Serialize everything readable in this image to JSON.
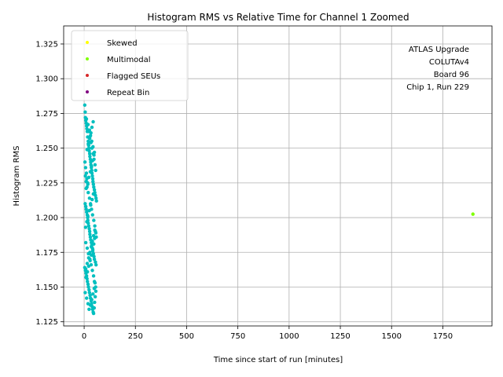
{
  "chart_data": {
    "type": "scatter",
    "title": "Histogram RMS vs Relative Time for Channel 1 Zoomed",
    "xlabel": "Time since start of run [minutes]",
    "ylabel": "Histogram RMS",
    "xlim": [
      -100,
      1990
    ],
    "ylim": [
      1.122,
      1.338
    ],
    "xticks": [
      0,
      250,
      500,
      750,
      1000,
      1250,
      1500,
      1750
    ],
    "yticks": [
      1.125,
      1.15,
      1.175,
      1.2,
      1.225,
      1.25,
      1.275,
      1.3,
      1.325
    ],
    "xtick_labels": [
      "0",
      "250",
      "500",
      "750",
      "1000",
      "1250",
      "1500",
      "1750"
    ],
    "ytick_labels": [
      "1.125",
      "1.150",
      "1.175",
      "1.200",
      "1.225",
      "1.250",
      "1.275",
      "1.300",
      "1.325"
    ],
    "grid": true,
    "legend_position": "top-left",
    "annotation": [
      "ATLAS Upgrade",
      "COLUTAv4",
      "Board 96",
      "Chip 1, Run 229"
    ],
    "colors": {
      "normal": "#00bfbf",
      "Skewed": "#ffff00",
      "Multimodal": "#7fff00",
      "Flagged SEUs": "#d62728",
      "Repeat Bin": "#800080"
    },
    "series": [
      {
        "name": "Skewed",
        "x": [],
        "y": []
      },
      {
        "name": "Multimodal",
        "x": [
          1897
        ],
        "y": [
          1.2025
        ]
      },
      {
        "name": "Flagged SEUs",
        "x": [],
        "y": []
      },
      {
        "name": "Repeat Bin",
        "x": [],
        "y": []
      }
    ],
    "normal_points": {
      "x": [
        3,
        5,
        6,
        8,
        10,
        12,
        13,
        15,
        17,
        20,
        22,
        23,
        25,
        27,
        28,
        30,
        32,
        33,
        35,
        37,
        38,
        40,
        42,
        43,
        45,
        47,
        50,
        52,
        55,
        58,
        60,
        5,
        8,
        10,
        12,
        15,
        17,
        18,
        20,
        22,
        25,
        27,
        28,
        30,
        32,
        35,
        37,
        40,
        42,
        45,
        48,
        50,
        55,
        58,
        3,
        6,
        9,
        12,
        14,
        16,
        19,
        21,
        24,
        26,
        29,
        31,
        34,
        36,
        39,
        41,
        44,
        46,
        49,
        51,
        54,
        57,
        4,
        7,
        11,
        13,
        18,
        23,
        27,
        33,
        38,
        44,
        48,
        53,
        56,
        6,
        10,
        14,
        20,
        26,
        31,
        36,
        41,
        47,
        52,
        55,
        59,
        8,
        15,
        21,
        28,
        34,
        40,
        46,
        50,
        56,
        5,
        12,
        19,
        24,
        30,
        37,
        43,
        49,
        53,
        9,
        16,
        22,
        29,
        35,
        42,
        47,
        51,
        57,
        7,
        13,
        18,
        25,
        32,
        39,
        45,
        10,
        17,
        23,
        30,
        36,
        41,
        48,
        14,
        20,
        27,
        33,
        38,
        44,
        11,
        19,
        26,
        31,
        37,
        43,
        50,
        8,
        15,
        22,
        28,
        35,
        40,
        46,
        52
      ],
      "y": [
        1.281,
        1.276,
        1.272,
        1.27,
        1.268,
        1.266,
        1.264,
        1.262,
        1.258,
        1.255,
        1.252,
        1.25,
        1.248,
        1.246,
        1.244,
        1.242,
        1.24,
        1.238,
        1.236,
        1.234,
        1.232,
        1.23,
        1.228,
        1.226,
        1.224,
        1.222,
        1.22,
        1.218,
        1.216,
        1.214,
        1.212,
        1.21,
        1.208,
        1.206,
        1.204,
        1.202,
        1.2,
        1.198,
        1.196,
        1.194,
        1.192,
        1.19,
        1.188,
        1.186,
        1.184,
        1.182,
        1.18,
        1.178,
        1.176,
        1.174,
        1.172,
        1.17,
        1.168,
        1.166,
        1.164,
        1.162,
        1.16,
        1.158,
        1.156,
        1.154,
        1.152,
        1.15,
        1.148,
        1.146,
        1.144,
        1.142,
        1.14,
        1.138,
        1.136,
        1.134,
        1.132,
        1.131,
        1.135,
        1.139,
        1.143,
        1.147,
        1.24,
        1.236,
        1.232,
        1.228,
        1.224,
        1.262,
        1.258,
        1.254,
        1.25,
        1.246,
        1.242,
        1.238,
        1.234,
        1.23,
        1.226,
        1.222,
        1.218,
        1.214,
        1.21,
        1.206,
        1.202,
        1.198,
        1.194,
        1.19,
        1.186,
        1.182,
        1.178,
        1.174,
        1.17,
        1.166,
        1.162,
        1.158,
        1.154,
        1.15,
        1.146,
        1.142,
        1.138,
        1.134,
        1.137,
        1.141,
        1.145,
        1.149,
        1.153,
        1.157,
        1.161,
        1.165,
        1.169,
        1.173,
        1.177,
        1.181,
        1.185,
        1.189,
        1.193,
        1.197,
        1.201,
        1.205,
        1.209,
        1.213,
        1.217,
        1.221,
        1.225,
        1.229,
        1.233,
        1.237,
        1.241,
        1.245,
        1.249,
        1.253,
        1.257,
        1.261,
        1.265,
        1.269,
        1.271,
        1.267,
        1.263,
        1.259,
        1.255,
        1.251,
        1.247,
        1.163,
        1.167,
        1.171,
        1.175,
        1.179,
        1.183,
        1.187,
        1.191
      ]
    }
  }
}
